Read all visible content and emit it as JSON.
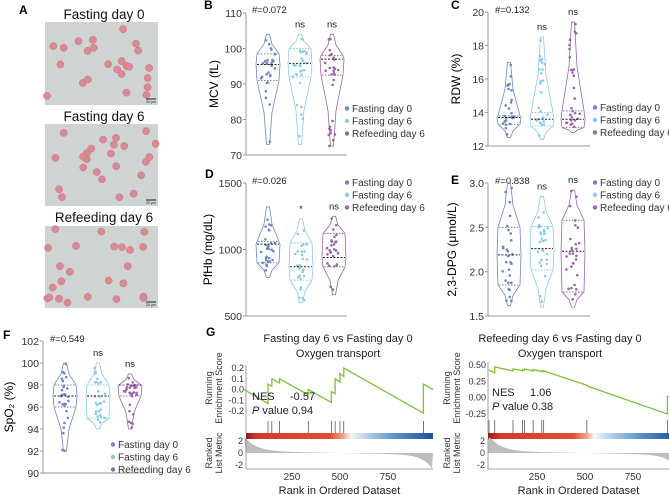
{
  "colors": {
    "fasting_day_0": "#6f86c0",
    "fasting_day_6": "#8ccbe6",
    "refeeding_day_6": "#9a66a8",
    "gsea_line": "#7ec23c"
  },
  "legend": [
    "Fasting day 0",
    "Fasting day 6",
    "Refeeding day 6"
  ],
  "panel_a": {
    "letter": "A",
    "images": [
      {
        "title": "Fasting day 0",
        "scale_bar": "20 μm"
      },
      {
        "title": "Fasting day 6",
        "scale_bar": "20 μm"
      },
      {
        "title": "Refeeding day 6",
        "scale_bar": "20 μm"
      }
    ]
  },
  "chart_data": [
    {
      "id": "B",
      "type": "violin",
      "ylabel": "MCV (fL)",
      "ylim": [
        70,
        110
      ],
      "yticks": [
        70,
        80,
        90,
        100,
        110
      ],
      "annotation": "#=0.072",
      "significance": [
        "",
        "ns",
        "ns"
      ],
      "series": [
        {
          "name": "Fasting day 0",
          "min": 73,
          "q1": 91,
          "median": 95.5,
          "q3": 98.5,
          "max": 104
        },
        {
          "name": "Fasting day 6",
          "min": 73,
          "q1": 92,
          "median": 95.8,
          "q3": 100,
          "max": 104
        },
        {
          "name": "Refeeding day 6",
          "min": 72.5,
          "q1": 92.5,
          "median": 97,
          "q3": 98,
          "max": 104
        }
      ],
      "legend_position": "right"
    },
    {
      "id": "C",
      "type": "violin",
      "ylabel": "RDW (%)",
      "ylim": [
        12,
        20
      ],
      "yticks": [
        12,
        14,
        16,
        18,
        20
      ],
      "annotation": "#=0.132",
      "significance": [
        "",
        "ns",
        "ns"
      ],
      "series": [
        {
          "name": "Fasting day 0",
          "min": 12.5,
          "q1": 13.3,
          "median": 13.7,
          "q3": 13.8,
          "max": 17
        },
        {
          "name": "Fasting day 6",
          "min": 12.4,
          "q1": 13.2,
          "median": 13.6,
          "q3": 14.0,
          "max": 18.5
        },
        {
          "name": "Refeeding day 6",
          "min": 12.8,
          "q1": 13.1,
          "median": 13.6,
          "q3": 14.1,
          "max": 19.4
        }
      ],
      "legend_position": "right"
    },
    {
      "id": "D",
      "type": "violin",
      "ylabel": "PfHb (mg/dL)",
      "ylim": [
        500,
        1500
      ],
      "yticks": [
        500,
        1000,
        1500
      ],
      "annotation": "#=0.026",
      "significance": [
        "",
        "*",
        "ns"
      ],
      "series": [
        {
          "name": "Fasting day 0",
          "min": 790,
          "q1": 900,
          "median": 1040,
          "q3": 1060,
          "max": 1320
        },
        {
          "name": "Fasting day 6",
          "min": 600,
          "q1": 770,
          "median": 870,
          "q3": 1050,
          "max": 1230
        },
        {
          "name": "Refeeding day 6",
          "min": 660,
          "q1": 870,
          "median": 940,
          "q3": 1120,
          "max": 1250
        }
      ],
      "legend_position": "top-right"
    },
    {
      "id": "E",
      "type": "violin",
      "ylabel": "2,3-DPG (μmol/L)",
      "ylim": [
        1.5,
        3.0
      ],
      "yticks": [
        1.5,
        2.0,
        2.5,
        3.0
      ],
      "annotation": "#=0.838",
      "significance": [
        "",
        "ns",
        "ns"
      ],
      "series": [
        {
          "name": "Fasting day 0",
          "min": 1.62,
          "q1": 1.85,
          "median": 2.19,
          "q3": 2.5,
          "max": 3.0
        },
        {
          "name": "Fasting day 6",
          "min": 1.6,
          "q1": 2.02,
          "median": 2.26,
          "q3": 2.51,
          "max": 2.85
        },
        {
          "name": "Refeeding day 6",
          "min": 1.6,
          "q1": 1.77,
          "median": 2.23,
          "q3": 2.58,
          "max": 2.92
        }
      ],
      "legend_position": "top-right"
    },
    {
      "id": "F",
      "type": "violin",
      "ylabel": "SpO₂ (%)",
      "ylim": [
        90,
        102
      ],
      "yticks": [
        90,
        92,
        94,
        96,
        98,
        100,
        102
      ],
      "annotation": "#=0.549",
      "significance": [
        "",
        "ns",
        "ns"
      ],
      "series": [
        {
          "name": "Fasting day 0",
          "min": 92,
          "q1": 96,
          "median": 97,
          "q3": 98,
          "max": 100
        },
        {
          "name": "Fasting day 6",
          "min": 94,
          "q1": 95,
          "median": 97,
          "q3": 98,
          "max": 100
        },
        {
          "name": "Refeeding day 6",
          "min": 94,
          "q1": 97,
          "median": 98,
          "q3": 98,
          "max": 99
        }
      ],
      "legend_position": "bottom-right"
    },
    {
      "id": "G1",
      "type": "line",
      "title": "Fasting day 6 vs Fasting day 0",
      "subtitle": "Oxygen transport",
      "xlabel": "Rank in Ordered Dataset",
      "ylabel": "Running Enrichment Score",
      "ylabel2": "Ranked List Metric",
      "xticks": [
        250,
        500,
        750
      ],
      "yticks": [
        0.2,
        0.1,
        0.0,
        -0.1,
        -0.2
      ],
      "yticks_labels": [
        "0.2",
        "0.1",
        "0.0",
        "-0.1",
        "-0.2"
      ],
      "ylim": [
        -0.2,
        0.2
      ],
      "xlim": [
        0,
        985
      ],
      "metric_ticks": [
        2,
        0,
        -2
      ],
      "nes_label": "NES",
      "nes": "-0.57",
      "p_label": "P",
      "p_text": " value 0.94",
      "hits": [
        125,
        145,
        185,
        335,
        455,
        475,
        500,
        520,
        935
      ],
      "running_es": [
        [
          0,
          0
        ],
        [
          125,
          -0.13
        ],
        [
          125,
          0.05
        ],
        [
          145,
          0.03
        ],
        [
          145,
          0.1
        ],
        [
          185,
          0.06
        ],
        [
          185,
          0.1
        ],
        [
          335,
          -0.05
        ],
        [
          335,
          0.0
        ],
        [
          455,
          -0.12
        ],
        [
          455,
          -0.02
        ],
        [
          475,
          -0.04
        ],
        [
          475,
          0.1
        ],
        [
          500,
          0.07
        ],
        [
          500,
          0.15
        ],
        [
          520,
          0.12
        ],
        [
          520,
          0.2
        ],
        [
          935,
          -0.22
        ],
        [
          935,
          0.05
        ],
        [
          985,
          0.0
        ]
      ]
    },
    {
      "id": "G2",
      "type": "line",
      "title": "Refeeding day 6 vs Fasting day 0",
      "subtitle": "Oxygen transport",
      "xlabel": "Rank in Ordered Dataset",
      "ylabel": "Running Enrichment Score",
      "ylabel2": "Ranked List Metric",
      "xticks": [
        250,
        500,
        750
      ],
      "yticks": [
        0.5,
        0.25,
        0.0,
        -0.25
      ],
      "yticks_labels": [
        "0.50",
        "0.25",
        "0.00",
        "-0.25"
      ],
      "ylim": [
        -0.25,
        0.5
      ],
      "xlim": [
        0,
        985
      ],
      "metric_ticks": [
        2,
        0,
        -2
      ],
      "nes_label": "NES",
      "nes": "1.06",
      "p_label": "P",
      "p_text": " value 0.38",
      "hits": [
        0,
        30,
        125,
        175,
        185,
        230,
        275,
        285,
        510,
        930
      ],
      "running_es": [
        [
          0,
          0.42
        ],
        [
          30,
          0.38
        ],
        [
          30,
          0.47
        ],
        [
          125,
          0.41
        ],
        [
          125,
          0.44
        ],
        [
          175,
          0.41
        ],
        [
          175,
          0.43
        ],
        [
          185,
          0.42
        ],
        [
          185,
          0.44
        ],
        [
          230,
          0.41
        ],
        [
          230,
          0.43
        ],
        [
          275,
          0.4
        ],
        [
          275,
          0.41
        ],
        [
          285,
          0.4
        ],
        [
          285,
          0.41
        ],
        [
          510,
          0.19
        ],
        [
          510,
          0.18
        ],
        [
          930,
          -0.25
        ],
        [
          930,
          0.02
        ],
        [
          985,
          -0.01
        ]
      ]
    }
  ],
  "panel_g_letter": "G"
}
